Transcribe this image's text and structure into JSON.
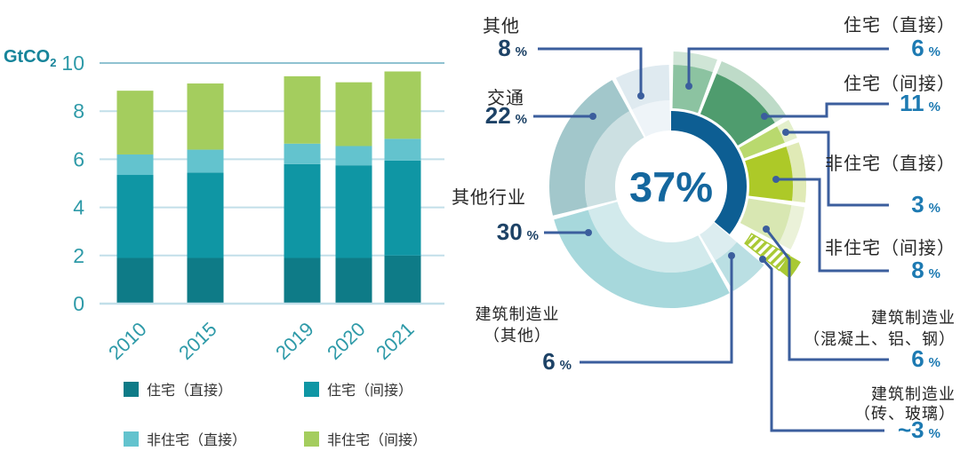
{
  "page": {
    "background": "#ffffff"
  },
  "bar_chart": {
    "unit_main": "GtCO",
    "unit_sub": "2",
    "axis_color": "#2e9aa8",
    "gridline_color": "#c2dfe9",
    "top_gridline_color": "#8fc2d1"
  },
  "donut": {
    "center_label": "37%",
    "percent_sign": "%",
    "ring_color": "#0d5e93",
    "leader_color": "#3b5e9d",
    "left_number_color": "#1d4266",
    "right_number_color": "#1d7ab2"
  },
  "chart_data": [
    {
      "type": "bar",
      "stacked": true,
      "title": "",
      "ylabel": "GtCO2",
      "xlabel": "",
      "categories": [
        "2010",
        "2015",
        "2019",
        "2020",
        "2021"
      ],
      "series": [
        {
          "name": "住宅（直接）",
          "color": "#0e7b87",
          "values": [
            1.9,
            1.9,
            1.9,
            1.9,
            2.0
          ]
        },
        {
          "name": "住宅（间接）",
          "color": "#0f96a4",
          "values": [
            3.45,
            3.55,
            3.9,
            3.85,
            3.95
          ]
        },
        {
          "name": "非住宅（直接）",
          "color": "#63c3ce",
          "values": [
            0.85,
            0.95,
            0.85,
            0.8,
            0.9
          ]
        },
        {
          "name": "非住宅（间接）",
          "color": "#a4cd5e",
          "values": [
            2.65,
            2.75,
            2.8,
            2.65,
            2.8
          ]
        }
      ],
      "ylim": [
        0,
        10
      ],
      "yticks": [
        0,
        2,
        4,
        6,
        8,
        10
      ],
      "grid": true,
      "legend_position": "bottom"
    },
    {
      "type": "pie",
      "donut": true,
      "center_label": "37%",
      "building_total_pct": 37,
      "slices": [
        {
          "id": "residential-direct",
          "label": "住宅（直接）",
          "num": "6",
          "pct_text": "6 %",
          "value": 6,
          "building": true,
          "color": "#8cc3a1",
          "halo": "#cfe5d6"
        },
        {
          "id": "residential-indirect",
          "label": "住宅（间接）",
          "num": "11",
          "pct_text": "11 %",
          "value": 11,
          "building": true,
          "color": "#4f9c6e",
          "halo": "#bedbc8"
        },
        {
          "id": "nonresidential-direct",
          "label": "非住宅（直接）",
          "num": "3",
          "pct_text": "3 %",
          "value": 3,
          "building": true,
          "color": "#b9d96e",
          "halo": "#e3efcb"
        },
        {
          "id": "nonresidential-indirect",
          "label": "非住宅（间接）",
          "num": "8",
          "pct_text": "8 %",
          "value": 8,
          "building": true,
          "color": "#adc928",
          "halo": "#e0eab6"
        },
        {
          "id": "construction-concrete-aluminium-steel",
          "label": "建筑制造业（混凝土、铝、钢）",
          "label_lines": [
            "建筑制造业",
            "（混凝土、铝、钢）"
          ],
          "num": "6",
          "pct_text": "6 %",
          "value": 6,
          "building": true,
          "color": "#d8e7b2",
          "halo": "#ebf2d9"
        },
        {
          "id": "construction-bricks-glass",
          "label": "建筑制造业（砖、玻璃）",
          "label_lines": [
            "建筑制造业",
            "（砖、玻璃）"
          ],
          "num": "~3",
          "pct_text": "~3 %",
          "value": 3,
          "building": true,
          "color": "#a9c934",
          "hatched": true,
          "exploded": true
        },
        {
          "id": "construction-other",
          "label": "建筑制造业（其他）",
          "label_lines": [
            "建筑制造业",
            "（其他）"
          ],
          "num": "6",
          "pct_text": "6 %",
          "value": 6,
          "building": false,
          "color": "#badfe3",
          "inner": "#dcedf0"
        },
        {
          "id": "other-industry",
          "label": "其他行业",
          "num": "30",
          "pct_text": "30 %",
          "value": 30,
          "building": false,
          "color": "#a7d8dc",
          "inner": "#d2eaec"
        },
        {
          "id": "transport",
          "label": "交通",
          "num": "22",
          "pct_text": "22 %",
          "value": 22,
          "building": false,
          "color": "#a2c7cb",
          "inner": "#cce0e2"
        },
        {
          "id": "other",
          "label": "其他",
          "num": "8",
          "pct_text": "8 %",
          "value": 8,
          "building": false,
          "color": "#dfeaf0",
          "inner": "#eef4f8"
        }
      ]
    }
  ]
}
